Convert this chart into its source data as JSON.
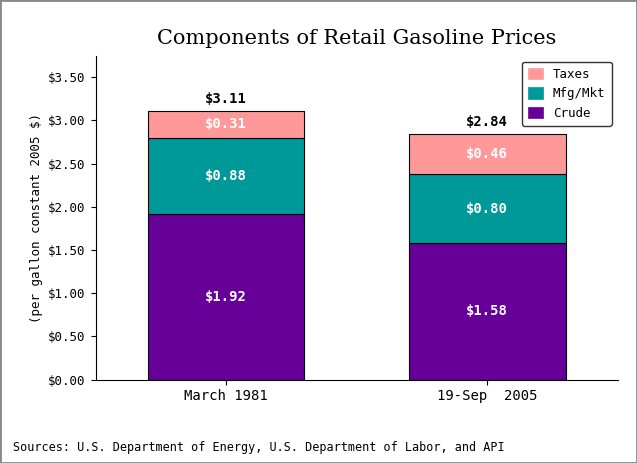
{
  "title": "Components of Retail Gasoline Prices",
  "ylabel": "(per gallon constant 2005 $)",
  "categories": [
    "March 1981",
    "19-Sep  2005"
  ],
  "crude": [
    1.92,
    1.58
  ],
  "mfg_mkt": [
    0.88,
    0.8
  ],
  "taxes": [
    0.31,
    0.46
  ],
  "totals": [
    3.11,
    2.84
  ],
  "crude_color": "#660099",
  "mfg_color": "#009999",
  "taxes_color": "#FF9999",
  "bar_label_color": "white",
  "total_label_color": "black",
  "ylim": [
    0,
    3.75
  ],
  "yticks": [
    0.0,
    0.5,
    1.0,
    1.5,
    2.0,
    2.5,
    3.0,
    3.5
  ],
  "ytick_labels": [
    "$0.00",
    "$0.50",
    "$1.00",
    "$1.50",
    "$2.00",
    "$2.50",
    "$3.00",
    "$3.50"
  ],
  "source_text": "Sources: U.S. Department of Energy, U.S. Department of Labor, and API",
  "bar_width": 0.6,
  "bg_color": "#ffffff",
  "outer_bg": "#ffffff",
  "border_color": "#888888"
}
